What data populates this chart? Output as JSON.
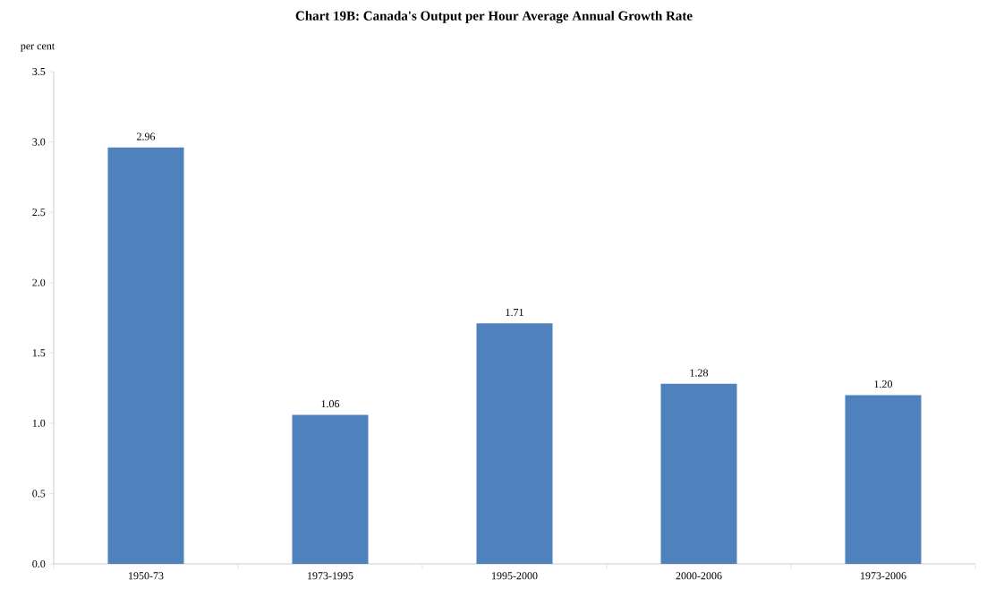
{
  "chart_data": {
    "type": "bar",
    "title": "Chart 19B: Canada's Output per Hour Average Annual Growth Rate",
    "ylabel": "per cent",
    "categories": [
      "1950-73",
      "1973-1995",
      "1995-2000",
      "2000-2006",
      "1973-2006"
    ],
    "values": [
      2.96,
      1.06,
      1.71,
      1.28,
      1.2
    ],
    "value_labels": [
      "2.96",
      "1.06",
      "1.71",
      "1.28",
      "1.20"
    ],
    "color": "#4f81bd",
    "ylim": [
      0,
      3.5
    ],
    "yticks": [
      {
        "value": 0,
        "label": "0.0"
      },
      {
        "value": 0.5,
        "label": "0.5"
      },
      {
        "value": 1,
        "label": "1.0"
      },
      {
        "value": 1.5,
        "label": "1.5"
      },
      {
        "value": 2,
        "label": "2.0"
      },
      {
        "value": 2.5,
        "label": "2.5"
      },
      {
        "value": 3,
        "label": "3.0"
      },
      {
        "value": 3.5,
        "label": "3.5"
      }
    ],
    "grid": false
  }
}
